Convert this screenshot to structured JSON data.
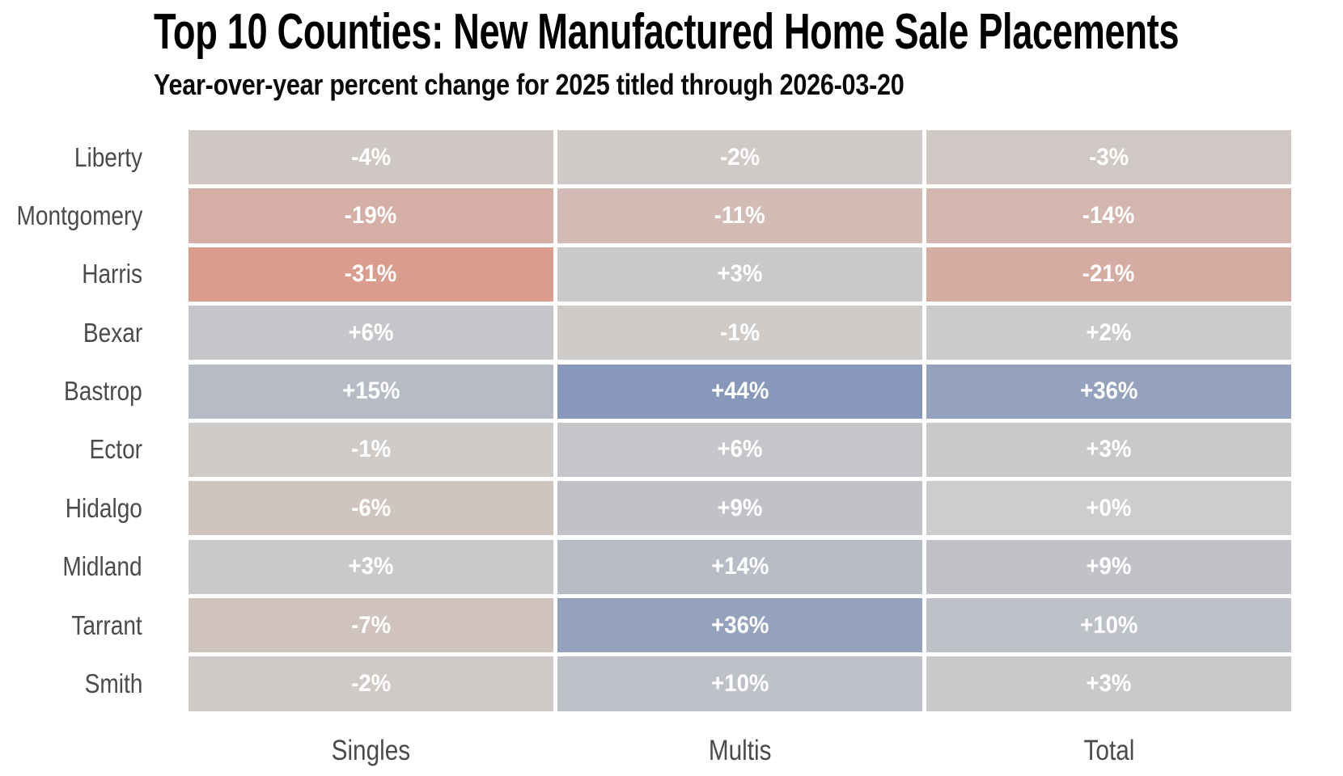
{
  "chart_data": {
    "type": "heatmap",
    "title": "Top 10 Counties: New Manufactured Home Sale Placements",
    "subtitle": "Year-over-year percent change for 2025 titled through 2026-03-20",
    "columns": [
      "Singles",
      "Multis",
      "Total"
    ],
    "rows": [
      {
        "county": "Liberty",
        "values": [
          -4,
          -2,
          -3
        ]
      },
      {
        "county": "Montgomery",
        "values": [
          -19,
          -11,
          -14
        ]
      },
      {
        "county": "Harris",
        "values": [
          -31,
          3,
          -21
        ]
      },
      {
        "county": "Bexar",
        "values": [
          6,
          -1,
          2
        ]
      },
      {
        "county": "Bastrop",
        "values": [
          15,
          44,
          36
        ]
      },
      {
        "county": "Ector",
        "values": [
          -1,
          6,
          3
        ]
      },
      {
        "county": "Hidalgo",
        "values": [
          -6,
          9,
          0
        ]
      },
      {
        "county": "Midland",
        "values": [
          3,
          14,
          9
        ]
      },
      {
        "county": "Tarrant",
        "values": [
          -7,
          36,
          10
        ]
      },
      {
        "county": "Smith",
        "values": [
          -2,
          10,
          3
        ]
      }
    ],
    "value_unit": "%",
    "value_format": "signed_percent",
    "legend": "none",
    "grid_lines": "white gaps between cells",
    "colormap": {
      "type": "diverging",
      "domain": [
        -31,
        0,
        44
      ],
      "negative_color": "#D99C8D",
      "neutral_color": "#CECDCB",
      "positive_color": "#8898BA"
    },
    "cell_text_color": "#FFFFFF",
    "label_color": "#4B4B4B",
    "title_color": "#000000"
  }
}
